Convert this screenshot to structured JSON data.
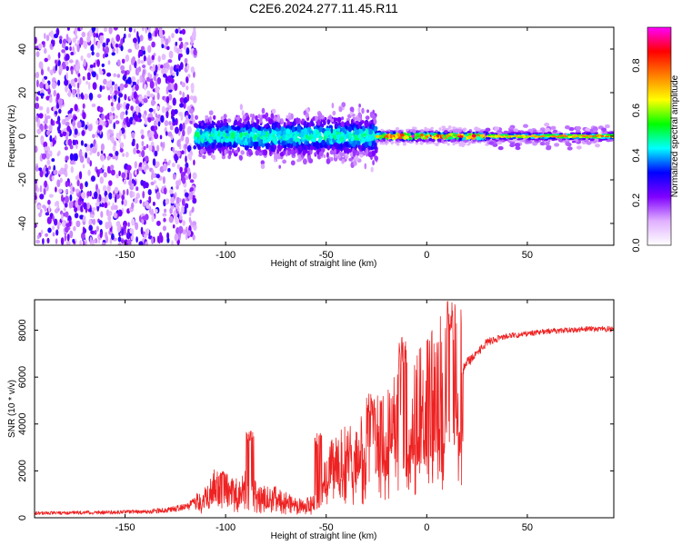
{
  "chart_data": [
    {
      "type": "heatmap",
      "title": "C2E6.2024.277.11.45.R11",
      "xlabel": "Height of straight line (km)",
      "ylabel": "Frequency (Hz)",
      "xlim": [
        -195,
        93
      ],
      "ylim": [
        -50,
        50
      ],
      "x_ticks": [
        -150,
        -100,
        -50,
        0,
        50
      ],
      "y_ticks": [
        -40,
        -20,
        0,
        20,
        40
      ],
      "colorbar": {
        "label": "Normalized spectral amplitude",
        "range": [
          0,
          0.97
        ],
        "ticks": [
          0.0,
          0.2,
          0.4,
          0.6,
          0.8
        ],
        "colors": [
          "#ffffff",
          "#e0b0ff",
          "#8000ff",
          "#0000ff",
          "#00ffff",
          "#00ff00",
          "#ffff00",
          "#ff8000",
          "#ff0000",
          "#ff00ff"
        ]
      },
      "regions": [
        {
          "description": "scattered noise",
          "x_range": [
            -195,
            -115
          ],
          "freq_range": [
            -50,
            50
          ],
          "amplitude": 0.1
        },
        {
          "description": "broadened signal",
          "x_range": [
            -115,
            -25
          ],
          "freq_range": [
            -15,
            15
          ],
          "amplitude": 0.25
        },
        {
          "description": "narrowing signal",
          "x_range": [
            -25,
            30
          ],
          "freq_range": [
            -5,
            5
          ],
          "amplitude": 0.5
        },
        {
          "description": "steady tone",
          "x_range": [
            30,
            93
          ],
          "freq_range": [
            -3,
            3
          ],
          "amplitude": 0.55
        }
      ]
    },
    {
      "type": "line",
      "xlabel": "Height of straight line (km)",
      "ylabel": "SNR (10 * v/v)",
      "xlim": [
        -195,
        93
      ],
      "ylim": [
        0,
        9300
      ],
      "x_ticks": [
        -150,
        -100,
        -50,
        0,
        50
      ],
      "y_ticks": [
        0,
        2000,
        4000,
        6000,
        8000
      ],
      "series": [
        {
          "name": "SNR",
          "color": "#ee2222",
          "x": [
            -195,
            -180,
            -160,
            -140,
            -130,
            -120,
            -115,
            -110,
            -105,
            -100,
            -95,
            -90,
            -85,
            -80,
            -75,
            -70,
            -65,
            -60,
            -55,
            -52,
            -50,
            -45,
            -40,
            -35,
            -30,
            -25,
            -20,
            -15,
            -10,
            -5,
            0,
            5,
            10,
            15,
            20,
            25,
            30,
            40,
            50,
            60,
            70,
            80,
            93
          ],
          "values": [
            200,
            210,
            230,
            260,
            320,
            450,
            650,
            900,
            1400,
            1000,
            1200,
            1300,
            1000,
            900,
            900,
            700,
            600,
            550,
            700,
            1200,
            2000,
            2500,
            2600,
            2700,
            3000,
            3400,
            3500,
            4000,
            4500,
            4700,
            5000,
            5500,
            6200,
            5800,
            6600,
            7000,
            7500,
            7750,
            7850,
            7950,
            8000,
            8050,
            8050
          ],
          "peaks": [
            {
              "x": -101,
              "value": 2000
            },
            {
              "x": -88,
              "value": 3700
            },
            {
              "x": -54,
              "value": 3600
            },
            {
              "x": -28,
              "value": 5300
            },
            {
              "x": -12,
              "value": 7700
            },
            {
              "x": 11,
              "value": 9300
            }
          ]
        }
      ]
    }
  ]
}
